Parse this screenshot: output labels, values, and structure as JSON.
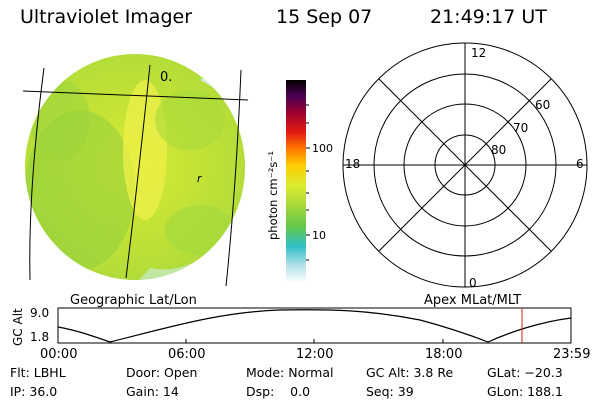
{
  "header": {
    "instrument": "Ultraviolet Imager",
    "date": "15 Sep 07",
    "time": "21:49:17 UT"
  },
  "geo_panel": {
    "label": "Geographic Lat/Lon",
    "glyph_top": "0.",
    "glyph_mid": "r"
  },
  "colorbar": {
    "unit_label": "photon cm⁻²s⁻¹",
    "tick_labels": [
      "100",
      "10"
    ]
  },
  "polar_panel": {
    "label": "Apex MLat/MLT",
    "mlt_labels": {
      "top": "12",
      "bottom": "0",
      "left": "18",
      "right": "6"
    },
    "lat_labels": [
      "60",
      "70",
      "80"
    ]
  },
  "altitude_plot": {
    "ylabel": "GC Alt",
    "y_ticks": [
      "9.0",
      "1.8"
    ],
    "x_ticks": [
      "00:00",
      "06:00",
      "12:00",
      "18:00",
      "23:59"
    ],
    "marker_color": "#cc2222"
  },
  "info": {
    "col1": [
      "Flt: LBHL",
      "IP: 36.0"
    ],
    "col2": [
      "Door: Open",
      "Gain: 14"
    ],
    "col3": [
      "Mode: Normal",
      "Dsp:    0.0"
    ],
    "col4": [
      "GC Alt: 3.8 Re",
      "Seq: 39"
    ],
    "col5": [
      "GLat: −20.3",
      "GLon: 188.1"
    ]
  },
  "colors": {
    "disk_base": "#c6e430",
    "disk_green": "#8fce3c",
    "disk_yellow": "#e4ec3a",
    "colorbar_top": "#000000",
    "colorbar_bottom": "#ffffff"
  }
}
